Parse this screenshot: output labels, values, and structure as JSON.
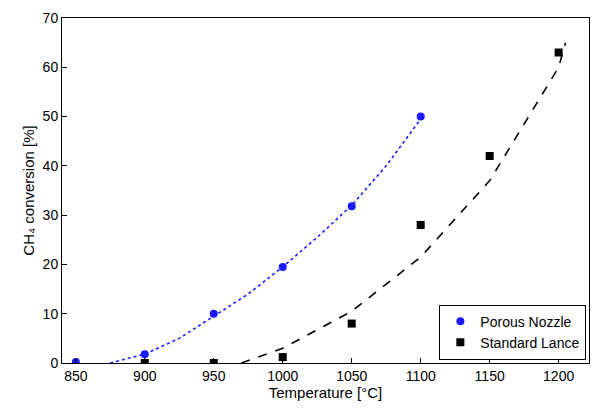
{
  "chart_data": {
    "type": "scatter",
    "x_label": "Temperature [°C]",
    "y_label": "CH₄ conversion [%]",
    "xlim": [
      840,
      1222
    ],
    "xticks": [
      850,
      900,
      950,
      1000,
      1050,
      1100,
      1150,
      1200
    ],
    "ylim": [
      0,
      70
    ],
    "yticks": [
      0,
      10,
      20,
      30,
      40,
      50,
      60,
      70
    ],
    "grid": false,
    "legend": "bottom right",
    "series": [
      {
        "name": "Porous Nozzle",
        "color": "#1a1aff",
        "marker": "circle",
        "line_style": "dotted",
        "x": [
          850,
          900,
          950,
          1000,
          1050,
          1100
        ],
        "values": [
          0.2,
          1.8,
          10,
          19.5,
          31.8,
          50
        ],
        "fit": {
          "x": [
            875,
            900,
            925,
            950,
            975,
            1000,
            1025,
            1050,
            1075,
            1100
          ],
          "values": [
            0,
            1.8,
            5,
            9.5,
            14,
            19.5,
            25.5,
            32,
            40,
            49.5
          ]
        }
      },
      {
        "name": "Standard Lance",
        "color": "#000000",
        "marker": "square",
        "line_style": "dashed",
        "x": [
          900,
          950,
          1000,
          1050,
          1100,
          1150,
          1200
        ],
        "values": [
          0,
          0,
          1.2,
          8,
          28,
          42,
          63
        ],
        "fit": {
          "x": [
            970,
            1000,
            1050,
            1100,
            1150,
            1200,
            1205
          ],
          "values": [
            0,
            3,
            10.5,
            21.5,
            37,
            60,
            65
          ]
        }
      }
    ]
  }
}
